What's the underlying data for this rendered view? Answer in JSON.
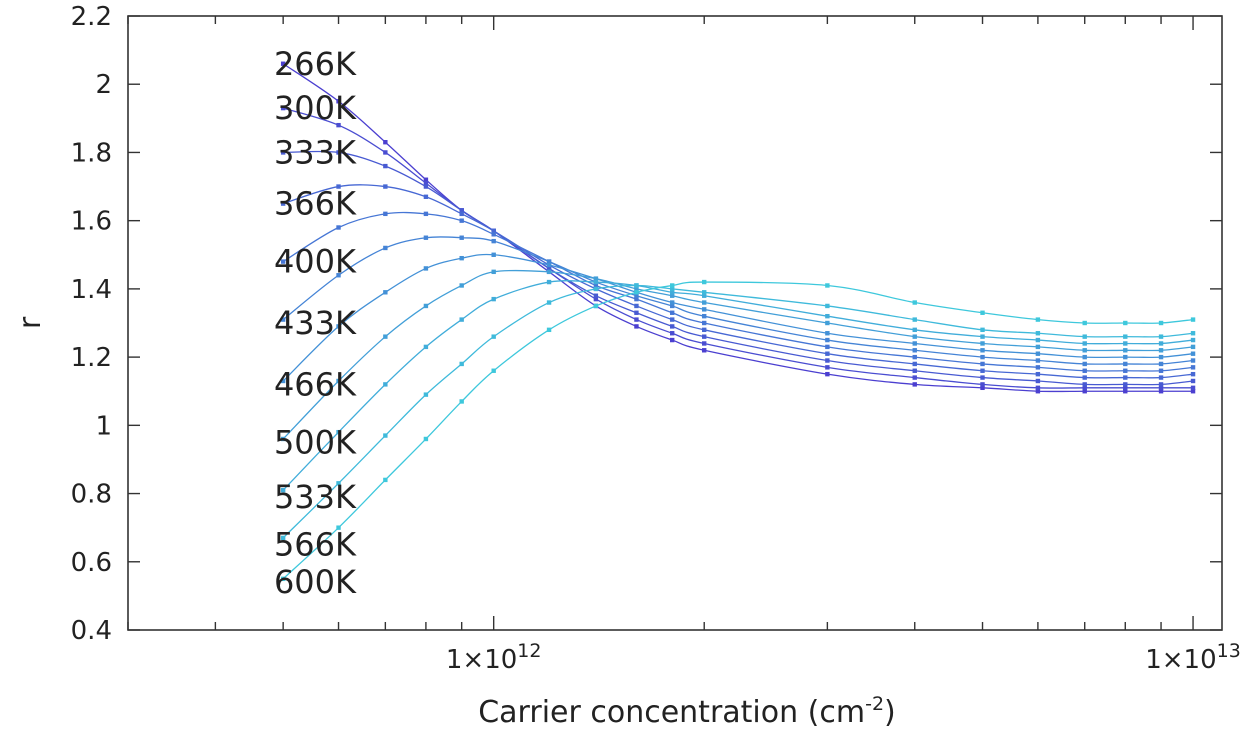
{
  "chart_data": {
    "type": "line",
    "x_scale": "log",
    "xlim": [
      300000000000.0,
      11000000000000.0
    ],
    "ylim": [
      0.4,
      2.2
    ],
    "grid": false,
    "legend": "inline-left",
    "title": "",
    "xlabel": "Carrier concentration (cm",
    "xlabel_sup": "-2",
    "xlabel_suffix": ")",
    "ylabel": "r",
    "y_ticks": [
      0.4,
      0.6,
      0.8,
      1,
      1.2,
      1.4,
      1.6,
      1.8,
      2,
      2.2
    ],
    "y_tick_labels": [
      "0.4",
      "0.6",
      "0.8",
      "1",
      "1.2",
      "1.4",
      "1.6",
      "1.8",
      "2",
      "2.2"
    ],
    "x_major_ticks": [
      {
        "value": 1000000000000.0,
        "base": "1×10",
        "exp": "12"
      },
      {
        "value": 10000000000000.0,
        "base": "1×10",
        "exp": "13"
      }
    ],
    "x": [
      500000000000.0,
      600000000000.0,
      700000000000.0,
      800000000000.0,
      900000000000.0,
      1000000000000.0,
      1200000000000.0,
      1400000000000.0,
      1600000000000.0,
      1800000000000.0,
      2000000000000.0,
      3000000000000.0,
      4000000000000.0,
      5000000000000.0,
      6000000000000.0,
      7000000000000.0,
      8000000000000.0,
      9000000000000.0,
      10000000000000.0
    ],
    "colors": {
      "start": "#4b3fd0",
      "end": "#3ec8dc"
    },
    "series": [
      {
        "name": "266K",
        "values": [
          2.06,
          1.95,
          1.83,
          1.72,
          1.63,
          1.57,
          1.45,
          1.35,
          1.29,
          1.25,
          1.22,
          1.15,
          1.12,
          1.11,
          1.1,
          1.1,
          1.1,
          1.1,
          1.1
        ]
      },
      {
        "name": "300K",
        "values": [
          1.93,
          1.88,
          1.8,
          1.71,
          1.63,
          1.57,
          1.46,
          1.37,
          1.31,
          1.27,
          1.24,
          1.17,
          1.14,
          1.12,
          1.11,
          1.11,
          1.11,
          1.11,
          1.11
        ]
      },
      {
        "name": "333K",
        "values": [
          1.8,
          1.8,
          1.76,
          1.7,
          1.63,
          1.57,
          1.46,
          1.38,
          1.33,
          1.29,
          1.26,
          1.19,
          1.16,
          1.14,
          1.13,
          1.12,
          1.12,
          1.12,
          1.13
        ]
      },
      {
        "name": "366K",
        "values": [
          1.65,
          1.7,
          1.7,
          1.67,
          1.62,
          1.57,
          1.47,
          1.4,
          1.35,
          1.31,
          1.28,
          1.21,
          1.18,
          1.16,
          1.15,
          1.14,
          1.14,
          1.14,
          1.15
        ]
      },
      {
        "name": "400K",
        "values": [
          1.48,
          1.58,
          1.62,
          1.62,
          1.6,
          1.56,
          1.48,
          1.41,
          1.37,
          1.33,
          1.3,
          1.23,
          1.2,
          1.18,
          1.17,
          1.16,
          1.16,
          1.16,
          1.17
        ]
      },
      {
        "name": "433K",
        "values": [
          1.31,
          1.44,
          1.52,
          1.55,
          1.55,
          1.54,
          1.48,
          1.42,
          1.38,
          1.35,
          1.32,
          1.25,
          1.22,
          1.2,
          1.19,
          1.18,
          1.18,
          1.18,
          1.19
        ]
      },
      {
        "name": "466K",
        "values": [
          1.13,
          1.29,
          1.39,
          1.46,
          1.49,
          1.5,
          1.47,
          1.43,
          1.39,
          1.36,
          1.34,
          1.27,
          1.24,
          1.22,
          1.21,
          1.2,
          1.2,
          1.2,
          1.21
        ]
      },
      {
        "name": "500K",
        "values": [
          0.96,
          1.13,
          1.26,
          1.35,
          1.41,
          1.45,
          1.45,
          1.43,
          1.4,
          1.38,
          1.36,
          1.3,
          1.26,
          1.24,
          1.23,
          1.22,
          1.22,
          1.22,
          1.23
        ]
      },
      {
        "name": "533K",
        "values": [
          0.81,
          0.98,
          1.12,
          1.23,
          1.31,
          1.37,
          1.42,
          1.42,
          1.41,
          1.39,
          1.38,
          1.32,
          1.28,
          1.26,
          1.25,
          1.24,
          1.24,
          1.24,
          1.25
        ]
      },
      {
        "name": "566K",
        "values": [
          0.67,
          0.83,
          0.97,
          1.09,
          1.18,
          1.26,
          1.36,
          1.4,
          1.41,
          1.4,
          1.39,
          1.35,
          1.31,
          1.28,
          1.27,
          1.26,
          1.26,
          1.26,
          1.27
        ]
      },
      {
        "name": "600K",
        "values": [
          0.55,
          0.7,
          0.84,
          0.96,
          1.07,
          1.16,
          1.28,
          1.35,
          1.39,
          1.41,
          1.42,
          1.41,
          1.36,
          1.33,
          1.31,
          1.3,
          1.3,
          1.3,
          1.31
        ]
      }
    ],
    "label_y": [
      2.06,
      1.93,
      1.8,
      1.65,
      1.48,
      1.3,
      1.12,
      0.95,
      0.79,
      0.65,
      0.54
    ]
  }
}
